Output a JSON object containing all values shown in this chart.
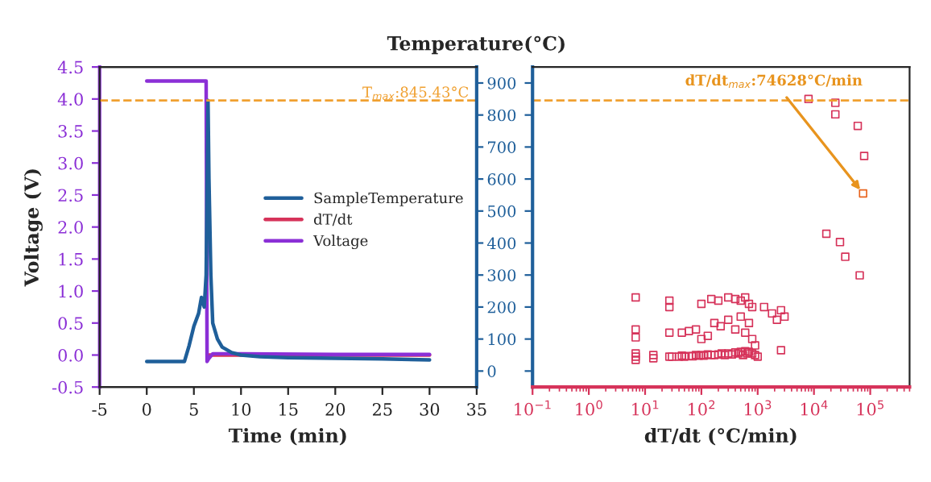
{
  "chart_data": [
    {
      "type": "line",
      "xlabel": "Time (min)",
      "ylabel": "Voltage (V)",
      "y2label": "Temperature(°C)",
      "xlim": [
        -5,
        35
      ],
      "xticks": [
        -5,
        0,
        5,
        10,
        15,
        20,
        25,
        30,
        35
      ],
      "ylim": [
        -0.5,
        4.5
      ],
      "yticks": [
        {
          "value": -0.5,
          "label": "-0.5"
        },
        {
          "value": 0,
          "label": "0.0"
        },
        {
          "value": 0.5,
          "label": "0.5"
        },
        {
          "value": 1,
          "label": "1.0"
        },
        {
          "value": 1.5,
          "label": "1.5"
        },
        {
          "value": 2,
          "label": "2.0"
        },
        {
          "value": 2.5,
          "label": "2.5"
        },
        {
          "value": 3,
          "label": "3.0"
        },
        {
          "value": 3.5,
          "label": "3.5"
        },
        {
          "value": 4,
          "label": "4.0"
        },
        {
          "value": 4.5,
          "label": "4.5"
        }
      ],
      "y2lim": [
        -50,
        950
      ],
      "y2ticks": [
        0,
        100,
        200,
        300,
        400,
        500,
        600,
        700,
        800,
        900
      ],
      "legend": "right",
      "grid": false,
      "marker": "none",
      "line_style": "solid",
      "series": [
        {
          "name": "SampleTemperature",
          "color": "#1f5f9a",
          "axis": "y2",
          "x": [
            0,
            1,
            2,
            3,
            4,
            4.5,
            5,
            5.5,
            5.8,
            6.1,
            6.3,
            6.5,
            6.6,
            6.8,
            7,
            7.5,
            8,
            9,
            10,
            12,
            15,
            20,
            25,
            30
          ],
          "values": [
            30,
            30,
            30,
            30,
            30,
            80,
            140,
            180,
            230,
            200,
            300,
            845,
            600,
            300,
            150,
            100,
            75,
            58,
            50,
            45,
            42,
            40,
            38,
            35
          ]
        },
        {
          "name": "dT/dt",
          "color": "#d6335a",
          "axis": "y",
          "x": [
            6.5,
            7,
            10,
            20,
            30
          ],
          "values": [
            0,
            0,
            0,
            0,
            0
          ]
        },
        {
          "name": "Voltage",
          "color": "#8b2fd6",
          "axis": "y",
          "x": [
            0,
            6.3,
            6.4,
            6.6,
            7,
            10,
            20,
            30
          ],
          "values": [
            4.28,
            4.28,
            -0.1,
            -0.05,
            0.02,
            0.02,
            0.01,
            0.01
          ]
        }
      ],
      "ref_lines": [
        {
          "axis": "y2",
          "value": 845.43,
          "label": "T$_{max}$:845.43°C",
          "color": "#f0a030",
          "line_style": "dashed"
        }
      ]
    },
    {
      "type": "scatter",
      "xlabel": "dT/dt (°C/min)",
      "log": "x",
      "xlim": [
        0.1,
        500000
      ],
      "xticks": [
        {
          "value": 0.1,
          "label": "10$^{−1}$"
        },
        {
          "value": 1,
          "label": "10$^{0}$"
        },
        {
          "value": 10,
          "label": "10$^{1}$"
        },
        {
          "value": 100,
          "label": "10$^{2}$"
        },
        {
          "value": 1000,
          "label": "10$^{3}$"
        },
        {
          "value": 10000,
          "label": "10$^{4}$"
        },
        {
          "value": 100000,
          "label": "10$^{5}$"
        }
      ],
      "ylim": [
        -50,
        950
      ],
      "yticks": [
        0,
        100,
        200,
        300,
        400,
        500,
        600,
        700,
        800,
        900
      ],
      "tick_labels": "x",
      "grid": false,
      "marker": "square",
      "series": [
        {
          "color": "#d6335a",
          "x": [
            6.8,
            6.8,
            6.8,
            6.8,
            6.8,
            6.8,
            14,
            14,
            27,
            27,
            27,
            27,
            30,
            40,
            45,
            50,
            60,
            70,
            80,
            90,
            100,
            110,
            130,
            150,
            170,
            200,
            230,
            260,
            300,
            350,
            400,
            450,
            500,
            550,
            600,
            650,
            700,
            800,
            900,
            1000,
            45,
            60,
            80,
            100,
            130,
            170,
            220,
            300,
            400,
            500,
            600,
            700,
            800,
            900,
            100,
            150,
            200,
            300,
            400,
            500,
            600,
            700,
            800,
            1300,
            1800,
            2200,
            2600,
            3000,
            2600,
            8000,
            24000,
            24000,
            60000,
            78000,
            16600,
            29000,
            36000,
            65000
          ],
          "values": [
            230,
            130,
            105,
            55,
            45,
            35,
            50,
            40,
            220,
            200,
            120,
            45,
            45,
            45,
            48,
            45,
            47,
            46,
            50,
            48,
            50,
            48,
            52,
            50,
            50,
            52,
            55,
            50,
            55,
            52,
            58,
            55,
            60,
            50,
            62,
            55,
            60,
            55,
            50,
            45,
            120,
            125,
            130,
            100,
            110,
            150,
            140,
            160,
            130,
            170,
            120,
            150,
            100,
            80,
            210,
            225,
            220,
            230,
            225,
            220,
            230,
            210,
            200,
            200,
            180,
            160,
            190,
            170,
            65,
            850,
            838,
            802,
            766,
            672,
            429,
            403,
            357,
            299
          ]
        },
        {
          "color": "#e8641e",
          "x": [
            74628
          ],
          "values": [
            555
          ]
        }
      ],
      "ref_lines": [
        {
          "axis": "y",
          "value": 845.43,
          "color": "#f0a030",
          "line_style": "dashed"
        }
      ],
      "annotations": [
        {
          "text": "dT/dt$_{max}$:74628°C/min",
          "x": 74628,
          "y": 555
        }
      ]
    }
  ]
}
